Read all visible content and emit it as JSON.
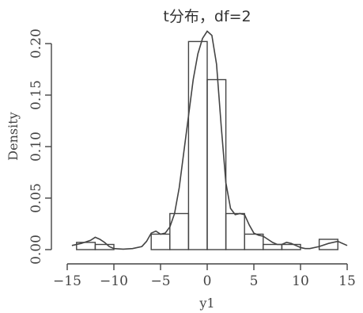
{
  "chart_data": {
    "type": "bar",
    "title": "t分布，df=2",
    "xlabel": "y1",
    "ylabel": "Density",
    "xlim": [
      -14.5,
      15.5
    ],
    "ylim": [
      0,
      0.215
    ],
    "x_ticks": [
      -15,
      -10,
      -5,
      0,
      5,
      10,
      15
    ],
    "x_tick_labels": [
      "−15",
      "−10",
      "−5",
      "0",
      "5",
      "10",
      "15"
    ],
    "y_ticks": [
      0.0,
      0.05,
      0.1,
      0.15,
      0.2
    ],
    "y_tick_labels": [
      "0.00",
      "0.05",
      "0.10",
      "0.15",
      "0.20"
    ],
    "bin_width": 2,
    "bins": [
      {
        "x0": -14,
        "x1": -12,
        "density": 0.007
      },
      {
        "x0": -12,
        "x1": -10,
        "density": 0.005
      },
      {
        "x0": -10,
        "x1": -8,
        "density": 0.0
      },
      {
        "x0": -8,
        "x1": -6,
        "density": 0.0
      },
      {
        "x0": -6,
        "x1": -4,
        "density": 0.015
      },
      {
        "x0": -4,
        "x1": -2,
        "density": 0.035
      },
      {
        "x0": -2,
        "x1": 0,
        "density": 0.202
      },
      {
        "x0": 0,
        "x1": 2,
        "density": 0.165
      },
      {
        "x0": 2,
        "x1": 4,
        "density": 0.035
      },
      {
        "x0": 4,
        "x1": 6,
        "density": 0.015
      },
      {
        "x0": 6,
        "x1": 8,
        "density": 0.005
      },
      {
        "x0": 8,
        "x1": 10,
        "density": 0.005
      },
      {
        "x0": 10,
        "x1": 12,
        "density": 0.0
      },
      {
        "x0": 12,
        "x1": 14,
        "density": 0.01
      }
    ],
    "density_curve": {
      "x": [
        -14.5,
        -13.5,
        -12.5,
        -12,
        -11.5,
        -11,
        -10.5,
        -10,
        -9,
        -8,
        -7,
        -6.5,
        -6,
        -5.5,
        -5,
        -4.5,
        -4,
        -3.5,
        -3,
        -2.5,
        -2,
        -1.5,
        -1,
        -0.5,
        0,
        0.5,
        1,
        1.5,
        2,
        2.5,
        3,
        3.5,
        4,
        4.5,
        5,
        5.5,
        6,
        6.5,
        7,
        7.5,
        8,
        8.5,
        9,
        9.5,
        10,
        10.5,
        11,
        12,
        13,
        14,
        15
      ],
      "y": [
        0.004,
        0.006,
        0.009,
        0.012,
        0.01,
        0.007,
        0.003,
        0.001,
        0.0005,
        0.001,
        0.003,
        0.008,
        0.016,
        0.018,
        0.015,
        0.016,
        0.022,
        0.035,
        0.06,
        0.095,
        0.13,
        0.165,
        0.19,
        0.205,
        0.212,
        0.208,
        0.18,
        0.12,
        0.065,
        0.04,
        0.034,
        0.035,
        0.034,
        0.024,
        0.016,
        0.014,
        0.013,
        0.01,
        0.007,
        0.005,
        0.005,
        0.007,
        0.006,
        0.004,
        0.002,
        0.001,
        0.001,
        0.003,
        0.006,
        0.008,
        0.004
      ]
    }
  }
}
